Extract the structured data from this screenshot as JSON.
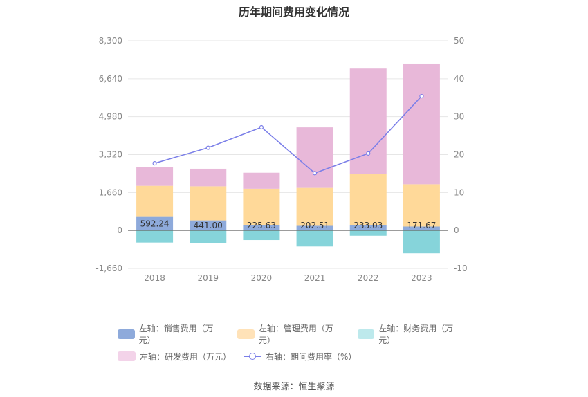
{
  "chart_data": {
    "type": "bar",
    "title": "历年期间费用变化情况",
    "categories": [
      "2018",
      "2019",
      "2020",
      "2021",
      "2022",
      "2023"
    ],
    "left_axis": {
      "ticks": [
        "8,300",
        "6,640",
        "4,980",
        "3,320",
        "1,660",
        "0",
        "-1,660"
      ],
      "min": -1660,
      "max": 8300
    },
    "right_axis": {
      "ticks": [
        "50",
        "40",
        "30",
        "20",
        "10",
        "0",
        "-10"
      ],
      "min": -10,
      "max": 50
    },
    "series": [
      {
        "name": "左轴：销售费用（万元）",
        "color": "#8eaadb",
        "values": [
          592.24,
          441.0,
          225.63,
          202.51,
          233.03,
          171.67
        ]
      },
      {
        "name": "左轴：管理费用（万元）",
        "color": "#ffd999",
        "values": [
          1360,
          1490,
          1600,
          1660,
          2240,
          1850
        ]
      },
      {
        "name": "左轴：财务费用（万元）",
        "color": "#86d4da",
        "values": [
          -530,
          -560,
          -420,
          -700,
          -230,
          -1000
        ]
      },
      {
        "name": "左轴：研发费用（万元）",
        "color": "#e8b8d9",
        "values": [
          810,
          770,
          700,
          2650,
          4610,
          5280
        ]
      },
      {
        "name": "右轴：期间费用率（%）",
        "color": "#7a7ee8",
        "values": [
          17.7,
          21.8,
          27.2,
          15.1,
          20.3,
          35.4
        ],
        "axis": "right",
        "type": "line"
      }
    ],
    "data_labels": [
      "592.24",
      "441.00",
      "225.63",
      "202.51",
      "233.03",
      "171.67"
    ],
    "grid": true,
    "legend_position": "bottom"
  },
  "legend_rows": [
    [
      {
        "label": "左轴：销售费用（万元）",
        "color": "#8eaadb",
        "kind": "box"
      },
      {
        "label": "左轴：管理费用（万元）",
        "color": "#ffe2b8",
        "kind": "box"
      },
      {
        "label": "左轴：财务费用（万元）",
        "color": "#bde9ec",
        "kind": "box"
      }
    ],
    [
      {
        "label": "左轴：研发费用（万元）",
        "color": "#f3d3e9",
        "kind": "box"
      },
      {
        "label": "右轴：期间费用率（%）",
        "color": "#7a7ee8",
        "kind": "line"
      }
    ]
  ],
  "source": "数据来源：恒生聚源"
}
